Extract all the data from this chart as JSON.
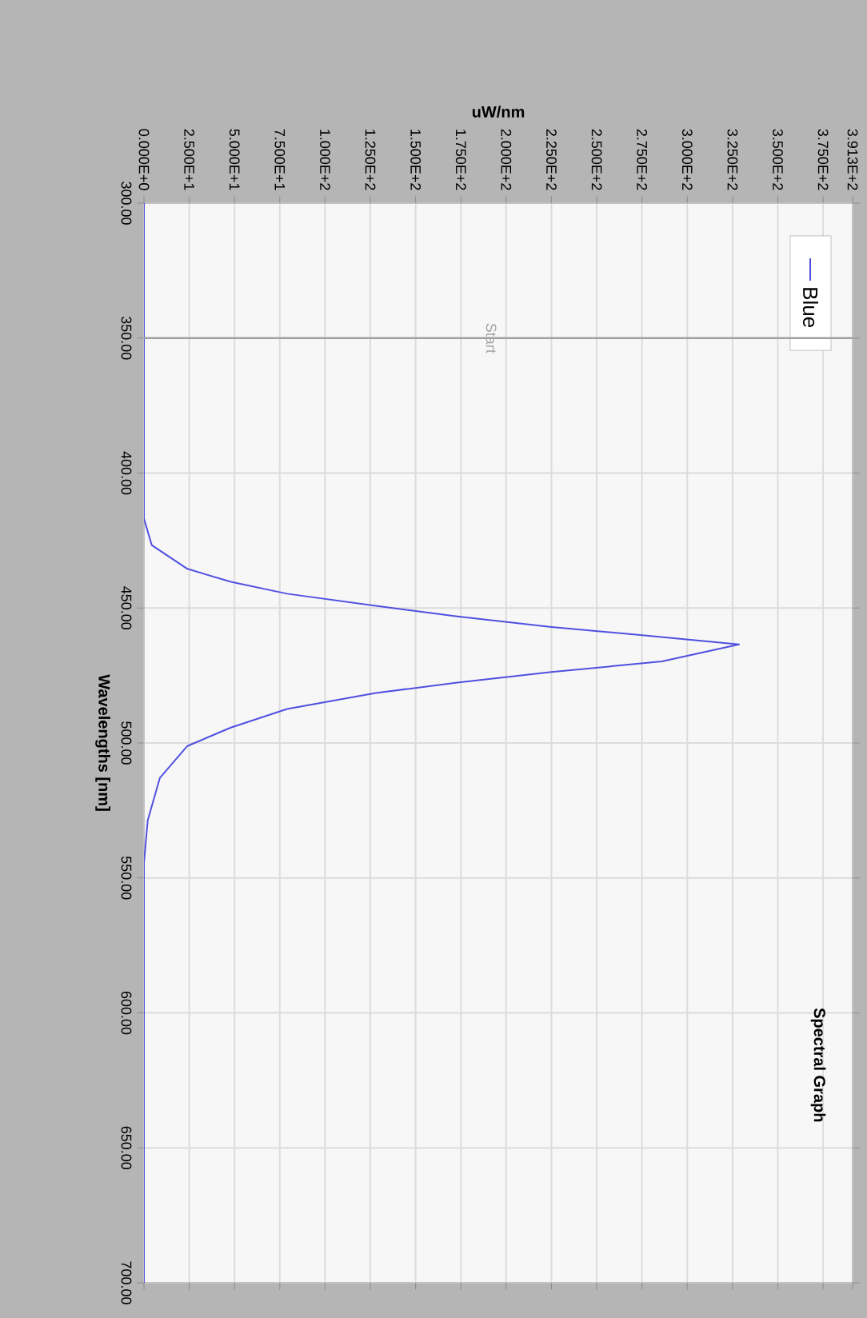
{
  "chart_data": {
    "type": "line",
    "title": "Spectral Graph",
    "xlabel": "uW/nm",
    "ylabel": "Wavelengths [nm]",
    "xlim": [
      0,
      391.3
    ],
    "ylim": [
      700,
      300
    ],
    "xticks": [
      {
        "value": 0,
        "label": "0.000E+0"
      },
      {
        "value": 25,
        "label": "2.500E+1"
      },
      {
        "value": 50,
        "label": "5.000E+1"
      },
      {
        "value": 75,
        "label": "7.500E+1"
      },
      {
        "value": 100,
        "label": "1.000E+2"
      },
      {
        "value": 125,
        "label": "1.250E+2"
      },
      {
        "value": 150,
        "label": "1.500E+2"
      },
      {
        "value": 175,
        "label": "1.750E+2"
      },
      {
        "value": 200,
        "label": "2.000E+2"
      },
      {
        "value": 225,
        "label": "2.250E+2"
      },
      {
        "value": 250,
        "label": "2.500E+2"
      },
      {
        "value": 275,
        "label": "2.750E+2"
      },
      {
        "value": 300,
        "label": "3.000E+2"
      },
      {
        "value": 325,
        "label": "3.250E+2"
      },
      {
        "value": 350,
        "label": "3.500E+2"
      },
      {
        "value": 375,
        "label": "3.750E+2"
      },
      {
        "value": 391.3,
        "label": "3.913E+2"
      }
    ],
    "yticks": [
      {
        "value": 300,
        "label": "300.00"
      },
      {
        "value": 350,
        "label": "350.00"
      },
      {
        "value": 400,
        "label": "400.00"
      },
      {
        "value": 450,
        "label": "450.00"
      },
      {
        "value": 500,
        "label": "500.00"
      },
      {
        "value": 550,
        "label": "550.00"
      },
      {
        "value": 600,
        "label": "600.00"
      },
      {
        "value": 650,
        "label": "650.00"
      },
      {
        "value": 700,
        "label": "700.00"
      }
    ],
    "grid": true,
    "legend": "top right",
    "ref_lines": [
      {
        "axis": "y",
        "value": 350,
        "label": "Start",
        "color": "#a0a0a0"
      }
    ],
    "x": [
      0,
      0,
      4.3,
      24,
      48,
      79,
      128,
      173,
      225,
      274,
      328.6,
      286,
      225,
      173,
      128,
      79,
      48,
      24,
      8.8,
      2.1,
      0,
      0
    ],
    "series": [
      {
        "name": "Blue",
        "color": "#5050e0",
        "values": [
          300,
          416.9,
          426.7,
          435.5,
          440.3,
          444.7,
          449.2,
          453.1,
          457.0,
          460.0,
          463.5,
          469.8,
          473.7,
          477.6,
          481.5,
          487.4,
          494.3,
          501.1,
          512.9,
          528.6,
          544.3,
          700
        ]
      }
    ]
  }
}
